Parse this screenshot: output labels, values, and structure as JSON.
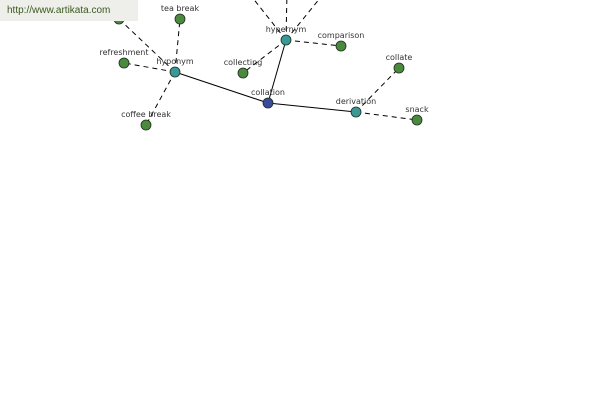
{
  "banner": {
    "url_text": "http://www.artikata.com"
  },
  "colors": {
    "root": "#3c4a9c",
    "relation": "#3a9896",
    "word": "#4b8a3e",
    "edge": "#000000"
  },
  "graph": {
    "root": {
      "id": "collation",
      "label": "collation"
    },
    "nodes": [
      {
        "id": "collation",
        "label": "collation",
        "kind": "root"
      },
      {
        "id": "hyponym",
        "label": "hyponym",
        "kind": "relation"
      },
      {
        "id": "hypernym",
        "label": "hypernym",
        "kind": "relation"
      },
      {
        "id": "derivation",
        "label": "derivation",
        "kind": "relation"
      },
      {
        "id": "tea_break",
        "label": "tea break",
        "kind": "word"
      },
      {
        "id": "refreshment",
        "label": "refreshment",
        "kind": "word"
      },
      {
        "id": "coffee_break",
        "label": "coffee break",
        "kind": "word"
      },
      {
        "id": "hidden_word",
        "label": "",
        "kind": "word"
      },
      {
        "id": "collecting",
        "label": "collecting",
        "kind": "word"
      },
      {
        "id": "comparison",
        "label": "comparison",
        "kind": "word"
      },
      {
        "id": "collate",
        "label": "collate",
        "kind": "word"
      },
      {
        "id": "snack",
        "label": "snack",
        "kind": "word"
      }
    ],
    "edges": [
      {
        "from": "collation",
        "to": "hyponym",
        "style": "solid"
      },
      {
        "from": "collation",
        "to": "hypernym",
        "style": "solid"
      },
      {
        "from": "collation",
        "to": "derivation",
        "style": "solid"
      },
      {
        "from": "hyponym",
        "to": "tea_break",
        "style": "dashed"
      },
      {
        "from": "hyponym",
        "to": "refreshment",
        "style": "dashed"
      },
      {
        "from": "hyponym",
        "to": "coffee_break",
        "style": "dashed"
      },
      {
        "from": "hyponym",
        "to": "hidden_word",
        "style": "dashed"
      },
      {
        "from": "hypernym",
        "to": "collecting",
        "style": "dashed"
      },
      {
        "from": "hypernym",
        "to": "comparison",
        "style": "dashed"
      },
      {
        "from": "hypernym",
        "to": "off_1",
        "style": "dashed"
      },
      {
        "from": "hypernym",
        "to": "off_2",
        "style": "dashed"
      },
      {
        "from": "hypernym",
        "to": "off_3",
        "style": "dashed"
      },
      {
        "from": "derivation",
        "to": "collate",
        "style": "dashed"
      },
      {
        "from": "derivation",
        "to": "snack",
        "style": "dashed"
      }
    ]
  }
}
